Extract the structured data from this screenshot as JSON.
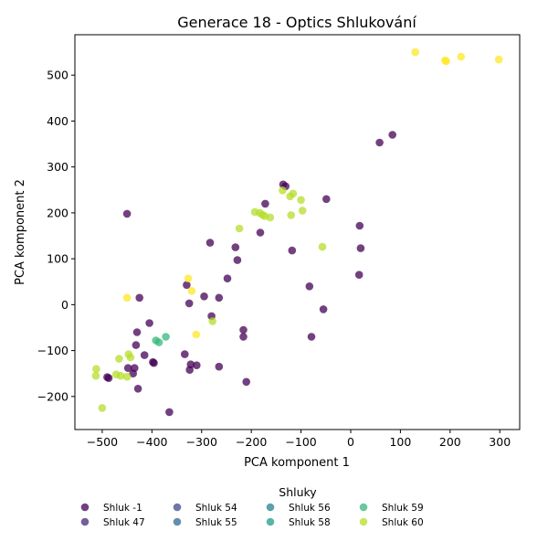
{
  "chart_data": {
    "type": "scatter",
    "title": "Generace 18 - Optics Shlukování",
    "xlabel": "PCA komponent 1",
    "ylabel": "PCA komponent 2",
    "xlim": [
      -555,
      340
    ],
    "ylim": [
      -272,
      588
    ],
    "xticks": [
      -500,
      -400,
      -300,
      -200,
      -100,
      0,
      100,
      200,
      300
    ],
    "yticks": [
      -200,
      -100,
      0,
      100,
      200,
      300,
      400,
      500
    ],
    "grid": false,
    "legend": {
      "title": "Shluky",
      "placement": "bottom-center",
      "columns": 5
    },
    "series": [
      {
        "name": "Shluk -1",
        "color": "#440154",
        "points": [
          [
            -450,
            198
          ],
          [
            -425,
            15
          ],
          [
            -430,
            -60
          ],
          [
            -405,
            -40
          ],
          [
            -432,
            -88
          ],
          [
            -415,
            -110
          ],
          [
            -398,
            -125
          ],
          [
            -396,
            -127
          ],
          [
            -448,
            -138
          ],
          [
            -435,
            -138
          ],
          [
            -438,
            -150
          ],
          [
            -428,
            -183
          ],
          [
            -490,
            -158
          ],
          [
            -487,
            -160
          ],
          [
            -365,
            -234
          ],
          [
            -330,
            43
          ],
          [
            -325,
            3
          ],
          [
            -295,
            18
          ],
          [
            -283,
            135
          ],
          [
            -280,
            -25
          ],
          [
            -265,
            15
          ],
          [
            -248,
            57
          ],
          [
            -232,
            125
          ],
          [
            -228,
            97
          ],
          [
            -216,
            -55
          ],
          [
            -216,
            -70
          ],
          [
            -210,
            -168
          ],
          [
            -334,
            -108
          ],
          [
            -322,
            -130
          ],
          [
            -324,
            -142
          ],
          [
            -310,
            -132
          ],
          [
            -265,
            -135
          ],
          [
            -182,
            157
          ],
          [
            -172,
            220
          ],
          [
            -136,
            262
          ],
          [
            -131,
            258
          ],
          [
            -118,
            118
          ],
          [
            -83,
            40
          ],
          [
            -79,
            -70
          ],
          [
            -55,
            -10
          ],
          [
            -49,
            230
          ],
          [
            18,
            172
          ],
          [
            20,
            123
          ],
          [
            17,
            65
          ],
          [
            58,
            353
          ],
          [
            84,
            370
          ]
        ]
      },
      {
        "name": "Shluk 47",
        "color": "#482878",
        "points": []
      },
      {
        "name": "Shluk 54",
        "color": "#3e4989",
        "points": []
      },
      {
        "name": "Shluk 55",
        "color": "#31688e",
        "points": []
      },
      {
        "name": "Shluk 56",
        "color": "#26828e",
        "points": []
      },
      {
        "name": "Shluk 58",
        "color": "#1f9e89",
        "points": []
      },
      {
        "name": "Shluk 59",
        "color": "#35b779",
        "points": [
          [
            -392,
            -78
          ],
          [
            -386,
            -82
          ],
          [
            -372,
            -70
          ]
        ]
      },
      {
        "name": "Shluk 60",
        "color": "#b5de2b",
        "points": [
          [
            -512,
            -140
          ],
          [
            -513,
            -155
          ],
          [
            -500,
            -225
          ],
          [
            -472,
            -152
          ],
          [
            -463,
            -155
          ],
          [
            -466,
            -118
          ],
          [
            -450,
            -157
          ],
          [
            -447,
            -108
          ],
          [
            -443,
            -115
          ],
          [
            -193,
            202
          ],
          [
            -183,
            200
          ],
          [
            -178,
            196
          ],
          [
            -173,
            193
          ],
          [
            -162,
            190
          ],
          [
            -137,
            249
          ],
          [
            -122,
            236
          ],
          [
            -116,
            242
          ],
          [
            -100,
            228
          ],
          [
            -97,
            205
          ],
          [
            -120,
            195
          ],
          [
            -57,
            126
          ],
          [
            -224,
            166
          ],
          [
            -278,
            -36
          ]
        ]
      },
      {
        "name": "",
        "color": "#fde725",
        "points": [
          [
            -450,
            15
          ],
          [
            -327,
            57
          ],
          [
            -320,
            30
          ],
          [
            -311,
            -65
          ],
          [
            130,
            550
          ],
          [
            190,
            532
          ],
          [
            192,
            530
          ],
          [
            222,
            540
          ],
          [
            298,
            534
          ]
        ]
      }
    ]
  }
}
